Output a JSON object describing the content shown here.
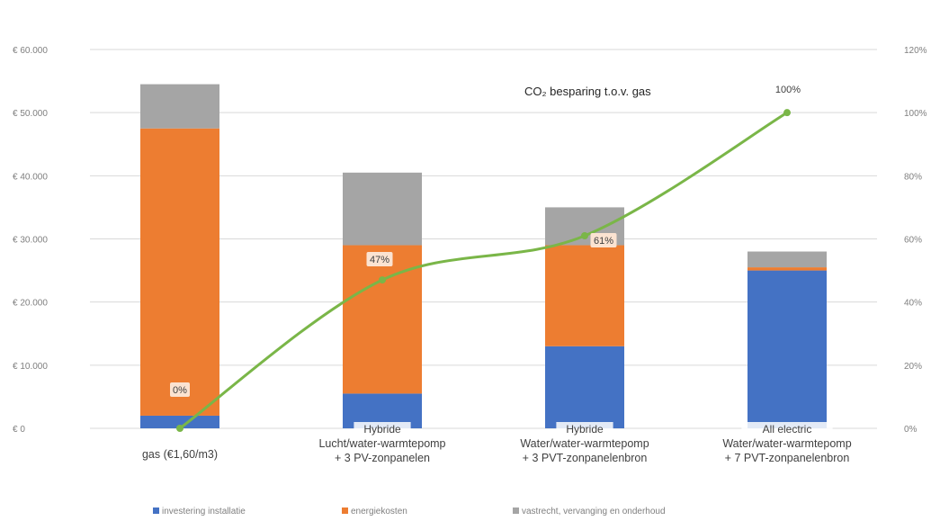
{
  "chart_data": {
    "type": "bar",
    "stacked": true,
    "categories": [
      {
        "lines": [
          "gas (€1,60/m3)"
        ]
      },
      {
        "lines": [
          "Hybride",
          "Lucht/water-warmtepomp",
          "+ 3 PV-zonpanelen"
        ]
      },
      {
        "lines": [
          "Hybride",
          "Water/water-warmtepomp",
          "+ 3 PVT-zonpanelenbron"
        ]
      },
      {
        "lines": [
          "All electric",
          "Water/water-warmtepomp",
          "+ 7 PVT-zonpanelenbron"
        ]
      }
    ],
    "series": [
      {
        "name": "investering installatie",
        "color": "#4472c4",
        "values": [
          2000,
          5500,
          13000,
          25000
        ]
      },
      {
        "name": "energiekosten",
        "color": "#ed7d31",
        "values": [
          45500,
          23500,
          16000,
          500
        ]
      },
      {
        "name": "vastrecht, vervanging en onderhoud",
        "color": "#a5a5a5",
        "values": [
          7000,
          11500,
          6000,
          2500
        ]
      }
    ],
    "line_series": {
      "color": "#7ab648",
      "axis": "right",
      "values": [
        0,
        47,
        61,
        100
      ],
      "labels": [
        "0%",
        "47%",
        "61%",
        "100%"
      ]
    },
    "annotation": "CO₂ besparing t.o.v. gas",
    "y_axis_left": {
      "min": 0,
      "max": 60000,
      "ticks": [
        0,
        10000,
        20000,
        30000,
        40000,
        50000,
        60000
      ],
      "tick_labels": [
        "€ 0",
        "€ 10.000",
        "€ 20.000",
        "€ 30.000",
        "€ 40.000",
        "€ 50.000",
        "€ 60.000"
      ]
    },
    "y_axis_right": {
      "min": 0,
      "max": 120,
      "ticks": [
        0,
        20,
        40,
        60,
        80,
        100,
        120
      ],
      "tick_labels": [
        "0%",
        "20%",
        "40%",
        "60%",
        "80%",
        "100%",
        "120%"
      ]
    },
    "grid": true,
    "legend_position": "bottom"
  }
}
